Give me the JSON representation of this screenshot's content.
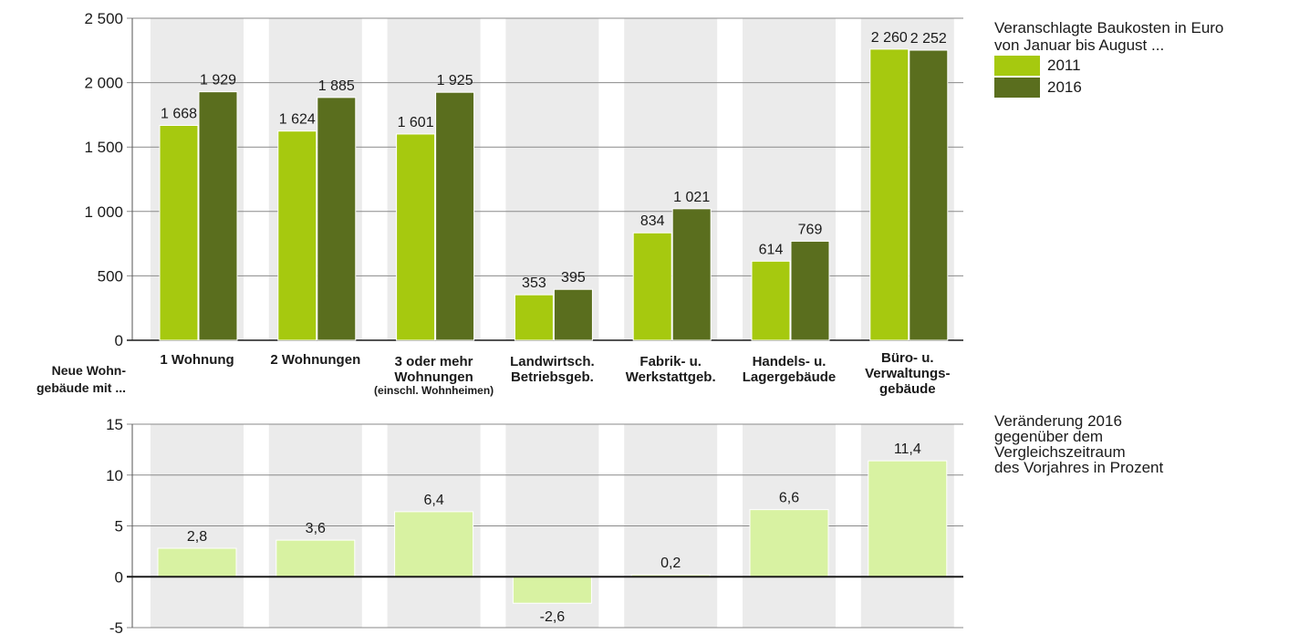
{
  "legend": {
    "title": "Veranschlagte Baukosten in Euro\nvon Januar bis August ...",
    "items": [
      {
        "label": "2011",
        "color": "#a6c90f"
      },
      {
        "label": "2016",
        "color": "#5a6e1e"
      }
    ]
  },
  "axis_title": "Neue Wohn-\ngebäude mit ...",
  "change_note": "Veränderung 2016\ngegenüber dem\nVergleichszeitraum\ndes Vorjahres in Prozent",
  "chart_data": [
    {
      "type": "bar",
      "categories": [
        {
          "label": "1 Wohnung",
          "sub": ""
        },
        {
          "label": "2 Wohnungen",
          "sub": ""
        },
        {
          "label": "3 oder mehr\nWohnungen",
          "sub": "(einschl. Wohnheimen)"
        },
        {
          "label": "Landwirtsch.\nBetriebsgeb.",
          "sub": ""
        },
        {
          "label": "Fabrik- u.\nWerkstattgeb.",
          "sub": ""
        },
        {
          "label": "Handels- u.\nLagergebäude",
          "sub": ""
        },
        {
          "label": "Büro- u.\nVerwaltungs-\ngebäude",
          "sub": ""
        }
      ],
      "series": [
        {
          "name": "2011",
          "values": [
            1668,
            1624,
            1601,
            353,
            834,
            614,
            2260
          ],
          "labels": [
            "1 668",
            "1 624",
            "1 601",
            "353",
            "834",
            "614",
            "2 260"
          ]
        },
        {
          "name": "2016",
          "values": [
            1929,
            1885,
            1925,
            395,
            1021,
            769,
            2252
          ],
          "labels": [
            "1 929",
            "1 885",
            "1 925",
            "395",
            "1 021",
            "769",
            "2 252"
          ]
        }
      ],
      "ylim": [
        0,
        2500
      ],
      "yticks": [
        0,
        500,
        1000,
        1500,
        2000,
        2500
      ],
      "ytick_labels": [
        "0",
        "500",
        "1 000",
        "1 500",
        "2 000",
        "2 500"
      ],
      "grid": true
    },
    {
      "type": "bar",
      "categories": [
        "1 Wohnung",
        "2 Wohnungen",
        "3 oder mehr Wohnungen",
        "Landwirtsch. Betriebsgeb.",
        "Fabrik- u. Werkstattgeb.",
        "Handels- u. Lagergebäude",
        "Büro- u. Verwaltungsgebäude"
      ],
      "values": [
        2.8,
        3.6,
        6.4,
        -2.6,
        0.2,
        6.6,
        11.4
      ],
      "labels": [
        "2,8",
        "3,6",
        "6,4",
        "-2,6",
        "0,2",
        "6,6",
        "11,4"
      ],
      "color": "#d8f2a2",
      "ylim": [
        -5,
        15
      ],
      "yticks": [
        -5,
        0,
        5,
        10,
        15
      ],
      "ytick_labels": [
        "-5",
        "0",
        "5",
        "10",
        "15"
      ],
      "grid": true
    }
  ]
}
